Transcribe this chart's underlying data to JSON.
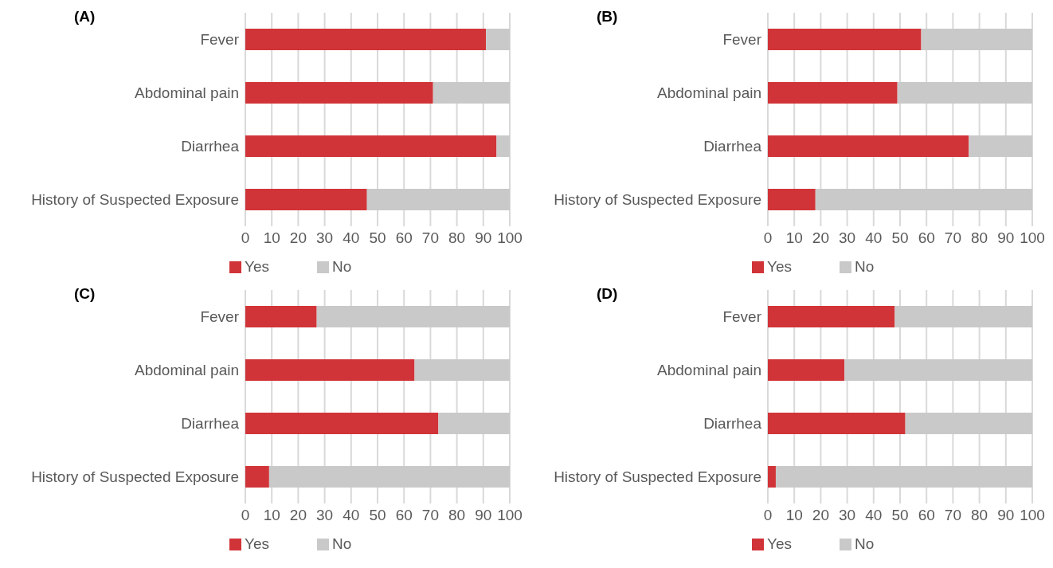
{
  "chart_data": [
    {
      "type": "bar",
      "orientation": "horizontal",
      "stacked": true,
      "title": "(A)",
      "categories": [
        "Fever",
        "Abdominal pain",
        "Diarrhea",
        "History of Suspected Exposure"
      ],
      "series": [
        {
          "name": "Yes",
          "color": "#d13438",
          "values": [
            91,
            71,
            95,
            46
          ]
        },
        {
          "name": "No",
          "color": "#c9c9c9",
          "values": [
            9,
            29,
            5,
            54
          ]
        }
      ],
      "xlim": [
        0,
        100
      ],
      "xticks": [
        0,
        10,
        20,
        30,
        40,
        50,
        60,
        70,
        80,
        90,
        100
      ],
      "grid": "x",
      "legend": "bottom left"
    },
    {
      "type": "bar",
      "orientation": "horizontal",
      "stacked": true,
      "title": "(B)",
      "categories": [
        "Fever",
        "Abdominal pain",
        "Diarrhea",
        "History of Suspected Exposure"
      ],
      "series": [
        {
          "name": "Yes",
          "color": "#d13438",
          "values": [
            58,
            49,
            76,
            18
          ]
        },
        {
          "name": "No",
          "color": "#c9c9c9",
          "values": [
            42,
            51,
            24,
            82
          ]
        }
      ],
      "xlim": [
        0,
        100
      ],
      "xticks": [
        0,
        10,
        20,
        30,
        40,
        50,
        60,
        70,
        80,
        90,
        100
      ],
      "grid": "x",
      "legend": "bottom left"
    },
    {
      "type": "bar",
      "orientation": "horizontal",
      "stacked": true,
      "title": "(C)",
      "categories": [
        "Fever",
        "Abdominal pain",
        "Diarrhea",
        "History of Suspected Exposure"
      ],
      "series": [
        {
          "name": "Yes",
          "color": "#d13438",
          "values": [
            27,
            64,
            73,
            9
          ]
        },
        {
          "name": "No",
          "color": "#c9c9c9",
          "values": [
            73,
            36,
            27,
            91
          ]
        }
      ],
      "xlim": [
        0,
        100
      ],
      "xticks": [
        0,
        10,
        20,
        30,
        40,
        50,
        60,
        70,
        80,
        90,
        100
      ],
      "grid": "x",
      "legend": "bottom left"
    },
    {
      "type": "bar",
      "orientation": "horizontal",
      "stacked": true,
      "title": "(D)",
      "categories": [
        "Fever",
        "Abdominal pain",
        "Diarrhea",
        "History of Suspected Exposure"
      ],
      "series": [
        {
          "name": "Yes",
          "color": "#d13438",
          "values": [
            48,
            29,
            52,
            3
          ]
        },
        {
          "name": "No",
          "color": "#c9c9c9",
          "values": [
            52,
            71,
            48,
            97
          ]
        }
      ],
      "xlim": [
        0,
        100
      ],
      "xticks": [
        0,
        10,
        20,
        30,
        40,
        50,
        60,
        70,
        80,
        90,
        100
      ],
      "grid": "x",
      "legend": "bottom left"
    }
  ]
}
